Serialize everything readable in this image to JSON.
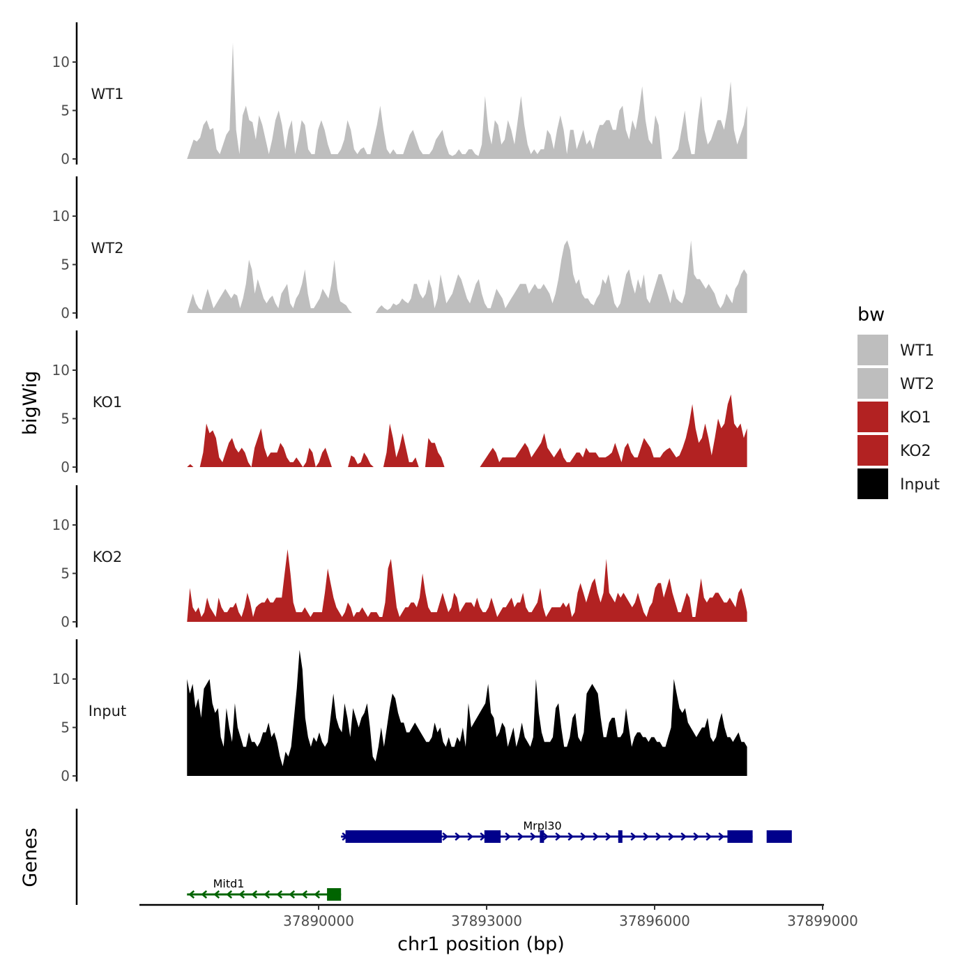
{
  "chart_data": {
    "type": "area",
    "ylabel": "bigWig",
    "xlabel": "chr1 position (bp)",
    "ylim": [
      0,
      14
    ],
    "y_ticks": [
      0,
      5,
      10
    ],
    "xlim": [
      37886800,
      37899000
    ],
    "x_ticks": [
      37890000,
      37893000,
      37896000,
      37899000
    ],
    "x_tick_labels": [
      "37890000",
      "37893000",
      "37896000",
      "37899000"
    ],
    "data_range": [
      37887650,
      37897650
    ],
    "tracks": [
      {
        "name": "WT1",
        "color": "#bebebe",
        "values": [
          0,
          1,
          2,
          1.8,
          2.2,
          3.5,
          4,
          3,
          3.2,
          1,
          0.5,
          1.5,
          2.5,
          3,
          12,
          3,
          0.5,
          4.5,
          5.5,
          4,
          3.8,
          2,
          4.5,
          3.5,
          2,
          0.5,
          2,
          4,
          5,
          3.5,
          1,
          3,
          4,
          0.5,
          2,
          4,
          3.5,
          1,
          0.5,
          0.5,
          3,
          4,
          3,
          1.5,
          0.5,
          0.5,
          0.5,
          1,
          2,
          4,
          3,
          1,
          0.5,
          1,
          1.2,
          0.5,
          0.5,
          2,
          3.5,
          5.5,
          3,
          1,
          0.5,
          1,
          0.5,
          0.5,
          0.5,
          1.5,
          2.5,
          3,
          2,
          1,
          0.5,
          0.5,
          0.5,
          1,
          2,
          2.5,
          3,
          1.5,
          0.5,
          0.3,
          0.5,
          1,
          0.5,
          0.5,
          1,
          1,
          0.5,
          0.3,
          1.5,
          6.5,
          3,
          1.5,
          4,
          3.5,
          1.5,
          2,
          4,
          3,
          1.5,
          4,
          6.5,
          3.5,
          1.5,
          0.5,
          1,
          0.5,
          1,
          1,
          3,
          2.5,
          1,
          3,
          4.5,
          3,
          0.5,
          3,
          3,
          1,
          2,
          3,
          1.5,
          2,
          1,
          2.5,
          3.5,
          3.5,
          4,
          4,
          3,
          3,
          5,
          5.5,
          3,
          2,
          4,
          3,
          5,
          7.5,
          4,
          2,
          1.5,
          4.5,
          3.5,
          0,
          0,
          0,
          0,
          0.5,
          1,
          3,
          5,
          2,
          0.5,
          0.5,
          4,
          6.5,
          3,
          1.5,
          2,
          3,
          4,
          4,
          3,
          5,
          8,
          3,
          1.5,
          2.5,
          3.5,
          5.5
        ]
      },
      {
        "name": "WT2",
        "color": "#bebebe",
        "values": [
          0,
          1,
          2,
          1,
          0.5,
          0.3,
          1.5,
          2.5,
          1.5,
          0.5,
          1,
          1.5,
          2,
          2.5,
          2,
          1.5,
          2,
          1.8,
          0.5,
          1.5,
          3,
          5.5,
          4.5,
          2,
          3.5,
          2.5,
          1.5,
          1,
          1.5,
          1.8,
          1,
          0.5,
          2,
          2.5,
          3,
          1,
          0.5,
          1.5,
          2,
          3,
          4.5,
          2,
          0.5,
          0.5,
          1,
          1.5,
          2.5,
          2,
          1.5,
          3,
          5.5,
          2.5,
          1.2,
          1,
          0.8,
          0.3,
          0,
          0,
          0,
          0,
          0,
          0,
          0,
          0,
          0,
          0.5,
          0.8,
          0.5,
          0.3,
          0.5,
          1,
          0.8,
          1,
          1.5,
          1.2,
          1,
          1.5,
          3,
          3,
          2,
          1.5,
          2,
          3.5,
          2.5,
          0.5,
          1.5,
          4,
          2.5,
          1,
          1.5,
          2,
          3,
          4,
          3.5,
          2.5,
          1.5,
          1,
          2,
          3,
          3.5,
          2,
          1,
          0.5,
          0.5,
          1.5,
          2.5,
          2,
          1.5,
          0.5,
          1,
          1.5,
          2,
          2.5,
          3,
          3,
          3,
          2,
          2.5,
          3,
          2.5,
          2.5,
          3,
          2.5,
          2,
          1,
          2,
          3.5,
          5.5,
          7,
          7.5,
          6.5,
          4,
          3,
          3.5,
          2,
          1.5,
          1.5,
          1,
          0.8,
          1.5,
          2,
          3.5,
          3,
          4,
          2.5,
          1,
          0.5,
          1,
          2.5,
          4,
          4.5,
          3,
          2,
          3.5,
          2.5,
          4,
          1.5,
          1,
          2,
          3,
          4,
          4,
          3,
          2,
          1,
          2.5,
          1.5,
          1.2,
          1,
          2,
          4.5,
          7.5,
          4,
          3.5,
          3.5,
          3,
          2.5,
          3,
          2.5,
          2,
          1,
          0.5,
          1,
          2,
          1.5,
          1,
          2.5,
          3,
          4,
          4.5,
          4
        ]
      },
      {
        "name": "KO1",
        "color": "#b22222",
        "values": [
          0,
          0.3,
          0,
          0,
          0,
          1.5,
          4.5,
          3.5,
          3.8,
          3,
          1,
          0.5,
          1.5,
          2.5,
          3,
          2,
          1.5,
          2,
          1.5,
          0.5,
          0,
          2,
          3,
          4,
          2,
          1,
          1.5,
          1.5,
          1.5,
          2.5,
          2,
          1,
          0.5,
          0.5,
          1,
          0.5,
          0,
          0.5,
          2,
          1.5,
          0,
          0.5,
          1.5,
          2,
          1,
          0,
          0,
          0,
          0,
          0,
          0,
          1.2,
          1,
          0.3,
          0.5,
          1.5,
          1,
          0.3,
          0,
          0,
          0,
          0,
          1.5,
          4.5,
          3,
          1,
          2,
          3.5,
          2,
          0.5,
          0.5,
          1,
          0,
          0,
          0,
          3,
          2.5,
          2.5,
          1.5,
          1,
          0,
          0,
          0,
          0,
          0,
          0,
          0,
          0,
          0,
          0,
          0,
          0,
          0.5,
          1,
          1.5,
          2,
          1.5,
          0.5,
          1,
          1,
          1,
          1,
          1,
          1.5,
          2,
          2.5,
          2,
          1,
          1.5,
          2,
          2.5,
          3.5,
          2,
          1.5,
          1,
          1.5,
          2,
          1,
          0.5,
          0.5,
          1,
          1.5,
          1.5,
          1,
          2,
          1.5,
          1.5,
          1.5,
          1,
          1,
          1,
          1.2,
          1.5,
          2.5,
          1.5,
          0.5,
          2,
          2.5,
          1.5,
          1,
          1,
          2,
          3,
          2.5,
          2,
          1,
          1,
          1,
          1.5,
          1.8,
          2,
          1.5,
          1,
          1.2,
          2,
          3,
          4.5,
          6.5,
          4,
          2.5,
          3,
          4.5,
          3,
          1.2,
          3,
          5,
          4,
          4.5,
          6.5,
          7.5,
          4.5,
          4,
          4.5,
          3,
          4
        ]
      },
      {
        "name": "KO2",
        "color": "#b22222",
        "values": [
          0,
          3.5,
          1.5,
          1,
          1.5,
          0.5,
          1,
          2.5,
          1.5,
          1,
          0.5,
          2.5,
          1.5,
          1,
          1,
          1.5,
          1.5,
          2,
          1,
          0.5,
          1.5,
          3,
          2,
          0.5,
          1.5,
          1.8,
          2,
          2,
          2.5,
          2,
          2,
          2.5,
          2.5,
          2.5,
          5,
          7.5,
          5,
          2,
          1,
          1,
          1,
          1.5,
          1,
          0.5,
          1,
          1,
          1,
          1,
          3,
          5.5,
          4,
          2.5,
          1.5,
          1,
          0.5,
          1,
          2,
          1.5,
          0.5,
          1,
          1,
          1.5,
          1,
          0.5,
          1,
          1,
          1,
          0.5,
          0.5,
          2,
          5.5,
          6.5,
          4,
          1.5,
          0.5,
          1,
          1.5,
          1.5,
          2,
          2,
          1.5,
          2.5,
          5,
          3,
          1.5,
          1,
          1,
          1,
          2,
          3,
          2,
          1,
          1.5,
          3,
          2.5,
          1,
          1.5,
          2,
          2,
          2,
          1.5,
          2.5,
          1.5,
          1,
          1,
          1.5,
          2.5,
          1.5,
          0.5,
          1,
          1.5,
          1.5,
          2,
          2.5,
          1.5,
          2,
          2,
          3,
          1.5,
          1,
          1,
          1.5,
          2,
          3.5,
          1.5,
          0.5,
          1,
          1.5,
          1.5,
          1.5,
          1.5,
          2,
          1.5,
          2,
          0.5,
          1,
          3,
          4,
          3,
          2,
          3,
          4,
          4.5,
          3,
          2,
          3,
          6.5,
          3,
          2.5,
          2,
          3,
          2.5,
          3,
          2.5,
          2,
          1.5,
          2,
          3,
          2,
          1,
          0.5,
          1.5,
          2,
          3.5,
          4,
          4,
          2.5,
          3.5,
          4.5,
          3,
          2,
          1,
          1,
          2,
          3,
          2.5,
          0.5,
          0.5,
          2.5,
          4.5,
          2.5,
          2,
          2.5,
          2.5,
          3,
          3,
          2.5,
          2,
          2,
          2.5,
          2,
          1.5,
          3,
          3.5,
          2.5,
          1
        ]
      },
      {
        "name": "Input",
        "color": "#000000",
        "values": [
          10,
          8.5,
          9.5,
          7,
          8,
          6,
          9,
          9.5,
          10,
          7.5,
          6.5,
          7,
          4,
          3,
          7,
          5,
          3.5,
          7.5,
          5,
          4,
          3,
          3,
          4.5,
          3.5,
          3.5,
          3,
          3.5,
          4.5,
          4.5,
          5.5,
          4,
          4.5,
          3.5,
          2,
          1,
          2.5,
          2,
          3,
          6,
          9,
          13,
          11,
          6,
          4,
          3,
          4,
          3.5,
          4.5,
          3.5,
          3,
          3.5,
          6,
          8.5,
          6,
          5,
          4.5,
          7.5,
          6,
          4,
          7,
          6,
          5,
          6,
          6.5,
          7.5,
          5,
          2,
          1.5,
          3,
          5,
          3,
          5,
          7,
          8.5,
          8,
          6.5,
          5.5,
          5.5,
          4.5,
          4.5,
          5,
          5.5,
          5,
          4.5,
          4,
          3.5,
          3.5,
          4,
          5.5,
          4.5,
          5,
          3.5,
          3,
          4,
          3,
          3,
          4,
          3.5,
          5,
          3,
          7.5,
          5,
          5.5,
          6,
          6.5,
          7,
          7.5,
          9.5,
          6.5,
          6,
          4,
          4.5,
          5.5,
          5,
          3,
          4,
          5,
          3,
          4,
          5.5,
          4,
          3.5,
          3,
          4,
          10,
          6.5,
          4.5,
          3.5,
          3.5,
          3.5,
          4,
          7,
          7.5,
          5,
          3,
          3,
          4,
          6,
          6.5,
          4,
          3.5,
          4.5,
          8.5,
          9,
          9.5,
          9,
          8.5,
          6,
          4,
          4,
          5.5,
          6,
          6,
          4,
          4,
          4.5,
          7,
          5,
          3,
          4,
          4.5,
          4.5,
          4,
          4,
          3.5,
          4,
          4,
          3.5,
          3.5,
          3,
          3,
          4,
          5,
          10,
          8.5,
          7,
          6.5,
          7,
          5.5,
          5,
          4.5,
          4,
          4.5,
          5,
          5,
          6,
          4,
          3.5,
          4,
          5.5,
          6.5,
          5,
          4,
          4,
          3.5,
          4,
          4.5,
          3.5,
          3.5,
          3
        ]
      }
    ],
    "legend": {
      "title": "bw",
      "entries": [
        {
          "label": "WT1",
          "color": "#bebebe"
        },
        {
          "label": "WT2",
          "color": "#bebebe"
        },
        {
          "label": "KO1",
          "color": "#b22222"
        },
        {
          "label": "KO2",
          "color": "#b22222"
        },
        {
          "label": "Input",
          "color": "#000000"
        }
      ]
    },
    "genes_panel": {
      "ylabel": "Genes",
      "genes": [
        {
          "name": "Mrpl30",
          "strand": "+",
          "start": 37890400,
          "end": 37897750,
          "color": "#00008b",
          "exons": [
            [
              37890480,
              37892200
            ],
            [
              37892960,
              37893250
            ],
            [
              37893950,
              37894020
            ],
            [
              37895350,
              37895420
            ],
            [
              37897300,
              37897750
            ],
            [
              37898000,
              37898450
            ]
          ]
        },
        {
          "name": "Mitd1",
          "strand": "-",
          "start": 37887650,
          "end": 37890400,
          "color": "#006400",
          "exons": [
            [
              37890150,
              37890400
            ]
          ]
        }
      ]
    }
  }
}
